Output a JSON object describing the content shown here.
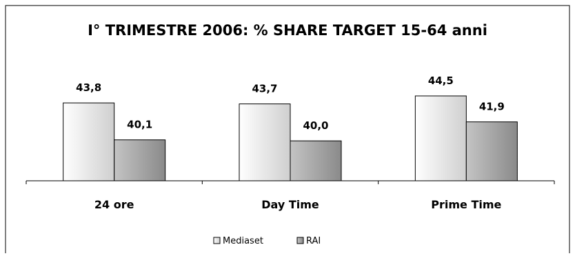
{
  "chart_data": {
    "type": "bar",
    "title": "I° TRIMESTRE 2006: % SHARE TARGET 15-64 anni",
    "categories": [
      "24 ore",
      "Day Time",
      "Prime Time"
    ],
    "series": [
      {
        "name": "Mediaset",
        "values": [
          43.8,
          43.7,
          44.5
        ],
        "labels": [
          "43,8",
          "43,7",
          "44,5"
        ]
      },
      {
        "name": "RAI",
        "values": [
          40.1,
          40.0,
          41.9
        ],
        "labels": [
          "40,1",
          "40,0",
          "41,9"
        ]
      }
    ],
    "ylim": [
      36,
      46
    ],
    "grid": false,
    "legend": "bottom",
    "colors": {
      "Mediaset_light": "#ffffff",
      "Mediaset_dark": "#cfcfcf",
      "RAI_light": "#c4c4c4",
      "RAI_dark": "#8a8a8a"
    }
  }
}
